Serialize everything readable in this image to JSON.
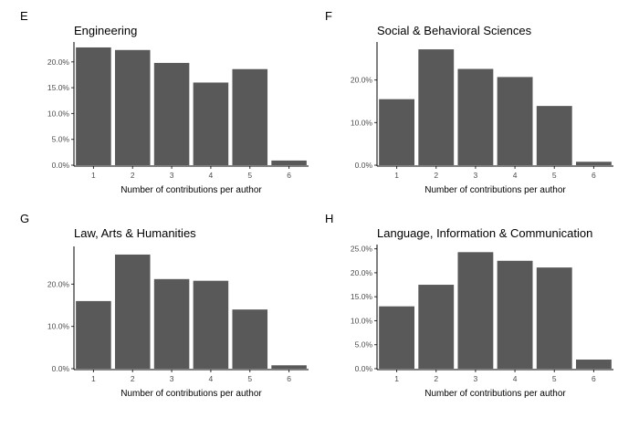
{
  "chart_data": [
    {
      "type": "bar",
      "panel": "E",
      "title": "Engineering",
      "xlabel": "Number of contributions per author",
      "ylabel": "",
      "categories": [
        "1",
        "2",
        "3",
        "4",
        "5",
        "6"
      ],
      "values": [
        22.8,
        22.3,
        19.8,
        16.0,
        18.6,
        0.9
      ],
      "ylim": [
        0,
        23.5
      ],
      "yticks": [
        0,
        5,
        10,
        15,
        20
      ],
      "ytick_labels": [
        "0.0%",
        "5.0%",
        "10.0%",
        "15.0%",
        "20.0%"
      ],
      "bar_color": "#595959"
    },
    {
      "type": "bar",
      "panel": "F",
      "title": "Social & Behavioral Sciences",
      "xlabel": "Number of contributions per author",
      "ylabel": "",
      "categories": [
        "1",
        "2",
        "3",
        "4",
        "5",
        "6"
      ],
      "values": [
        15.5,
        27.2,
        22.6,
        20.7,
        13.9,
        0.8
      ],
      "ylim": [
        0,
        28.5
      ],
      "yticks": [
        0,
        10,
        20
      ],
      "ytick_labels": [
        "0.0%",
        "10.0%",
        "20.0%"
      ],
      "bar_color": "#595959"
    },
    {
      "type": "bar",
      "panel": "G",
      "title": "Law, Arts & Humanities",
      "xlabel": "Number of contributions per author",
      "ylabel": "",
      "categories": [
        "1",
        "2",
        "3",
        "4",
        "5",
        "6"
      ],
      "values": [
        16.0,
        27.0,
        21.2,
        20.8,
        14.0,
        0.8
      ],
      "ylim": [
        0,
        28.5
      ],
      "yticks": [
        0,
        10,
        20
      ],
      "ytick_labels": [
        "0.0%",
        "10.0%",
        "20.0%"
      ],
      "bar_color": "#595959"
    },
    {
      "type": "bar",
      "panel": "H",
      "title": "Language, Information & Communication",
      "xlabel": "Number of contributions per author",
      "ylabel": "",
      "categories": [
        "1",
        "2",
        "3",
        "4",
        "5",
        "6"
      ],
      "values": [
        13.0,
        17.5,
        24.3,
        22.5,
        21.1,
        1.9
      ],
      "ylim": [
        0,
        25.5
      ],
      "yticks": [
        0,
        5,
        10,
        15,
        20,
        25
      ],
      "ytick_labels": [
        "0.0%",
        "5.0%",
        "10.0%",
        "15.0%",
        "20.0%",
        "25.0%"
      ],
      "bar_color": "#595959"
    }
  ]
}
